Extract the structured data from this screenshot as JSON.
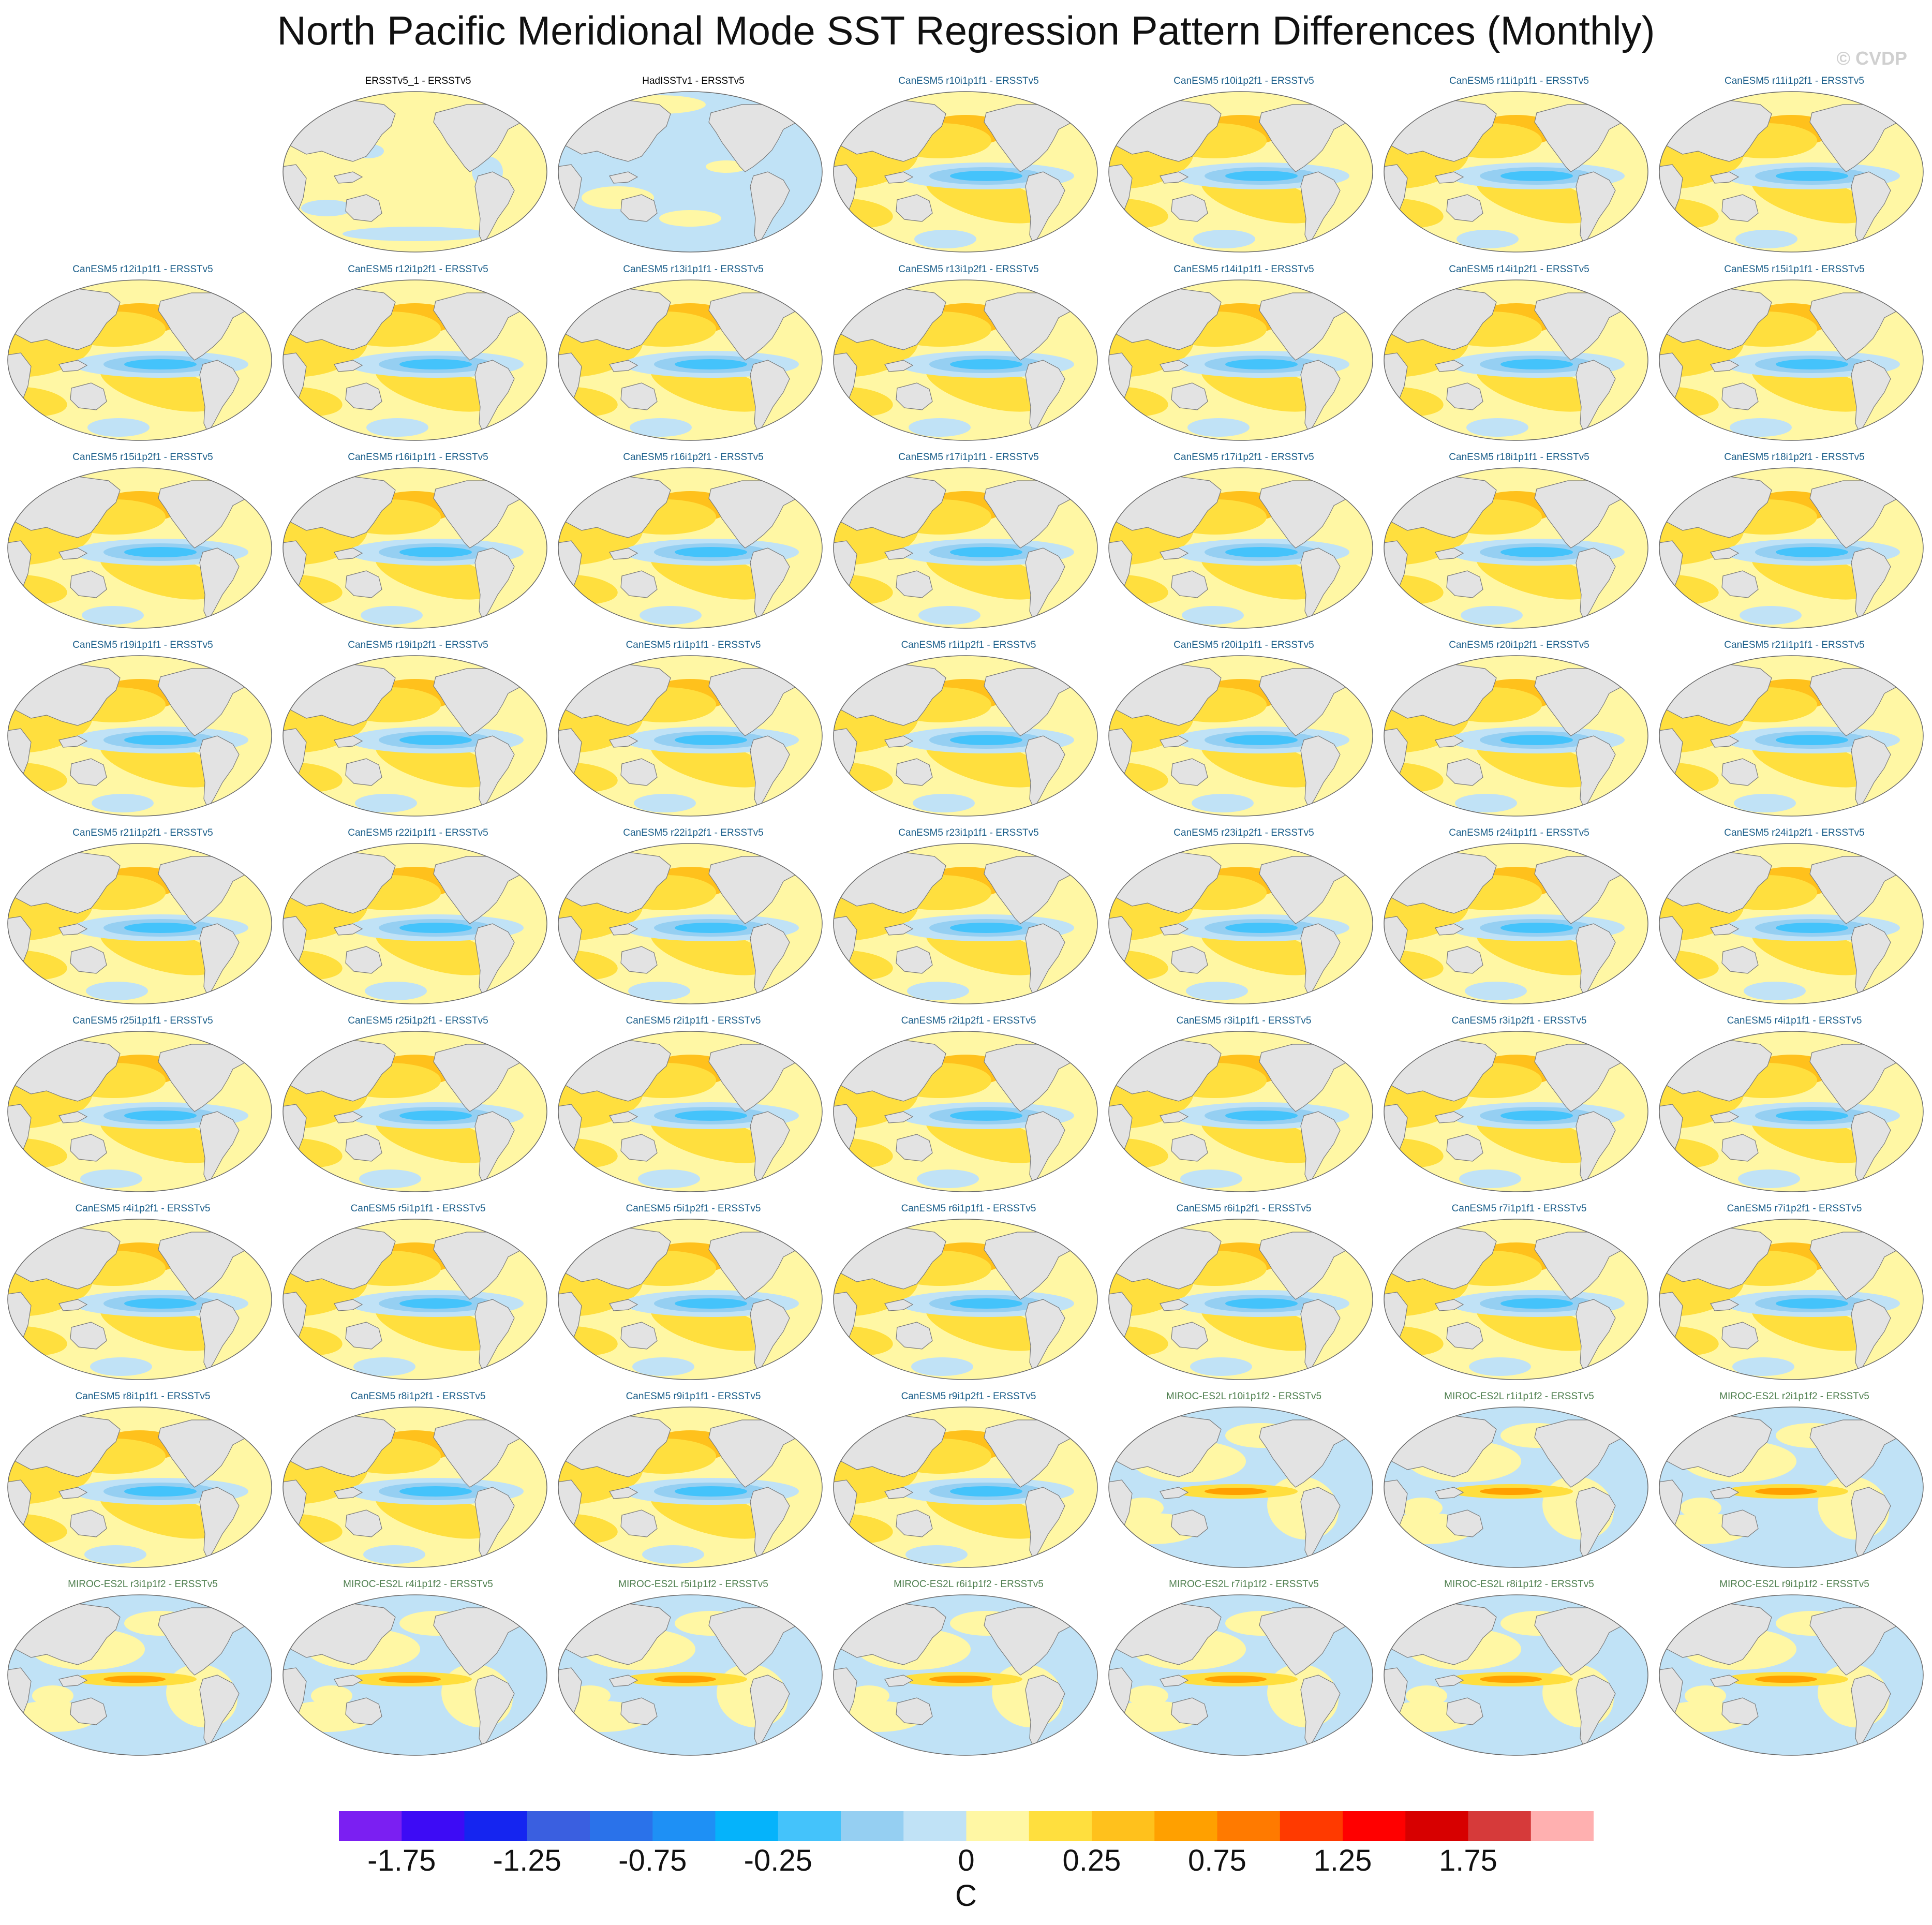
{
  "title": "North Pacific Meridional Mode SST Regression Pattern Differences (Monthly)",
  "watermark": "© CVDP",
  "units": "C",
  "colorbar": {
    "colors": [
      "#7b1ff2",
      "#3d0bf5",
      "#1525f0",
      "#3a5fe0",
      "#2a72ea",
      "#1e90f5",
      "#05b3fb",
      "#44c3fb",
      "#95cff2",
      "#c0e2f6",
      "#fff7a4",
      "#ffdf3e",
      "#ffc11c",
      "#ffa000",
      "#ff7a00",
      "#ff3a00",
      "#ff0000",
      "#d70000",
      "#d63a3a",
      "#ffb0b0"
    ],
    "tick_labels": [
      "-1.75",
      "-1.25",
      "-0.75",
      "-0.25",
      "0",
      "0.25",
      "0.75",
      "1.25",
      "1.75"
    ]
  },
  "panels": [
    {
      "label": "",
      "kind": "empty"
    },
    {
      "label": "ERSSTv5_1 - ERSSTv5",
      "kind": "obs1"
    },
    {
      "label": "HadISSTv1 - ERSSTv5",
      "kind": "obs2"
    },
    {
      "label": "CanESM5 r10i1p1f1 - ERSSTv5",
      "kind": "can"
    },
    {
      "label": "CanESM5 r10i1p2f1 - ERSSTv5",
      "kind": "can"
    },
    {
      "label": "CanESM5 r11i1p1f1 - ERSSTv5",
      "kind": "can"
    },
    {
      "label": "CanESM5 r11i1p2f1 - ERSSTv5",
      "kind": "can"
    },
    {
      "label": "CanESM5 r12i1p1f1 - ERSSTv5",
      "kind": "can"
    },
    {
      "label": "CanESM5 r12i1p2f1 - ERSSTv5",
      "kind": "can"
    },
    {
      "label": "CanESM5 r13i1p1f1 - ERSSTv5",
      "kind": "can"
    },
    {
      "label": "CanESM5 r13i1p2f1 - ERSSTv5",
      "kind": "can"
    },
    {
      "label": "CanESM5 r14i1p1f1 - ERSSTv5",
      "kind": "can"
    },
    {
      "label": "CanESM5 r14i1p2f1 - ERSSTv5",
      "kind": "can"
    },
    {
      "label": "CanESM5 r15i1p1f1 - ERSSTv5",
      "kind": "can"
    },
    {
      "label": "CanESM5 r15i1p2f1 - ERSSTv5",
      "kind": "can"
    },
    {
      "label": "CanESM5 r16i1p1f1 - ERSSTv5",
      "kind": "can"
    },
    {
      "label": "CanESM5 r16i1p2f1 - ERSSTv5",
      "kind": "can"
    },
    {
      "label": "CanESM5 r17i1p1f1 - ERSSTv5",
      "kind": "can"
    },
    {
      "label": "CanESM5 r17i1p2f1 - ERSSTv5",
      "kind": "can"
    },
    {
      "label": "CanESM5 r18i1p1f1 - ERSSTv5",
      "kind": "can"
    },
    {
      "label": "CanESM5 r18i1p2f1 - ERSSTv5",
      "kind": "can"
    },
    {
      "label": "CanESM5 r19i1p1f1 - ERSSTv5",
      "kind": "can"
    },
    {
      "label": "CanESM5 r19i1p2f1 - ERSSTv5",
      "kind": "can"
    },
    {
      "label": "CanESM5 r1i1p1f1 - ERSSTv5",
      "kind": "can"
    },
    {
      "label": "CanESM5 r1i1p2f1 - ERSSTv5",
      "kind": "can"
    },
    {
      "label": "CanESM5 r20i1p1f1 - ERSSTv5",
      "kind": "can"
    },
    {
      "label": "CanESM5 r20i1p2f1 - ERSSTv5",
      "kind": "can"
    },
    {
      "label": "CanESM5 r21i1p1f1 - ERSSTv5",
      "kind": "can"
    },
    {
      "label": "CanESM5 r21i1p2f1 - ERSSTv5",
      "kind": "can"
    },
    {
      "label": "CanESM5 r22i1p1f1 - ERSSTv5",
      "kind": "can"
    },
    {
      "label": "CanESM5 r22i1p2f1 - ERSSTv5",
      "kind": "can"
    },
    {
      "label": "CanESM5 r23i1p1f1 - ERSSTv5",
      "kind": "can"
    },
    {
      "label": "CanESM5 r23i1p2f1 - ERSSTv5",
      "kind": "can"
    },
    {
      "label": "CanESM5 r24i1p1f1 - ERSSTv5",
      "kind": "can"
    },
    {
      "label": "CanESM5 r24i1p2f1 - ERSSTv5",
      "kind": "can"
    },
    {
      "label": "CanESM5 r25i1p1f1 - ERSSTv5",
      "kind": "can"
    },
    {
      "label": "CanESM5 r25i1p2f1 - ERSSTv5",
      "kind": "can"
    },
    {
      "label": "CanESM5 r2i1p1f1 - ERSSTv5",
      "kind": "can"
    },
    {
      "label": "CanESM5 r2i1p2f1 - ERSSTv5",
      "kind": "can"
    },
    {
      "label": "CanESM5 r3i1p1f1 - ERSSTv5",
      "kind": "can"
    },
    {
      "label": "CanESM5 r3i1p2f1 - ERSSTv5",
      "kind": "can"
    },
    {
      "label": "CanESM5 r4i1p1f1 - ERSSTv5",
      "kind": "can"
    },
    {
      "label": "CanESM5 r4i1p2f1 - ERSSTv5",
      "kind": "can"
    },
    {
      "label": "CanESM5 r5i1p1f1 - ERSSTv5",
      "kind": "can"
    },
    {
      "label": "CanESM5 r5i1p2f1 - ERSSTv5",
      "kind": "can"
    },
    {
      "label": "CanESM5 r6i1p1f1 - ERSSTv5",
      "kind": "can"
    },
    {
      "label": "CanESM5 r6i1p2f1 - ERSSTv5",
      "kind": "can"
    },
    {
      "label": "CanESM5 r7i1p1f1 - ERSSTv5",
      "kind": "can"
    },
    {
      "label": "CanESM5 r7i1p2f1 - ERSSTv5",
      "kind": "can"
    },
    {
      "label": "CanESM5 r8i1p1f1 - ERSSTv5",
      "kind": "can"
    },
    {
      "label": "CanESM5 r8i1p2f1 - ERSSTv5",
      "kind": "can"
    },
    {
      "label": "CanESM5 r9i1p1f1 - ERSSTv5",
      "kind": "can"
    },
    {
      "label": "CanESM5 r9i1p2f1 - ERSSTv5",
      "kind": "can"
    },
    {
      "label": "MIROC-ES2L r10i1p1f2 - ERSSTv5",
      "kind": "miroc"
    },
    {
      "label": "MIROC-ES2L r1i1p1f2 - ERSSTv5",
      "kind": "miroc"
    },
    {
      "label": "MIROC-ES2L r2i1p1f2 - ERSSTv5",
      "kind": "miroc"
    },
    {
      "label": "MIROC-ES2L r3i1p1f2 - ERSSTv5",
      "kind": "miroc"
    },
    {
      "label": "MIROC-ES2L r4i1p1f2 - ERSSTv5",
      "kind": "miroc"
    },
    {
      "label": "MIROC-ES2L r5i1p1f2 - ERSSTv5",
      "kind": "miroc"
    },
    {
      "label": "MIROC-ES2L r6i1p1f2 - ERSSTv5",
      "kind": "miroc"
    },
    {
      "label": "MIROC-ES2L r7i1p1f2 - ERSSTv5",
      "kind": "miroc"
    },
    {
      "label": "MIROC-ES2L r8i1p1f2 - ERSSTv5",
      "kind": "miroc"
    },
    {
      "label": "MIROC-ES2L r9i1p1f2 - ERSSTv5",
      "kind": "miroc"
    }
  ],
  "label_colors": {
    "obs": "#000000",
    "can": "#1a5e8a",
    "miroc": "#4f7f4f"
  }
}
